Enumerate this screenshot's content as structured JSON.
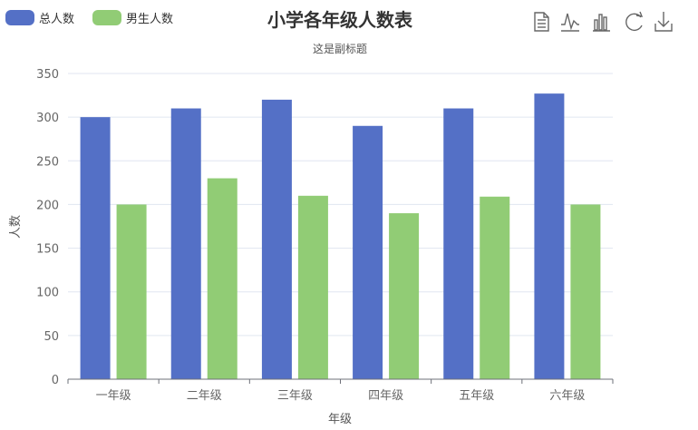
{
  "chart_data": {
    "type": "bar",
    "title": "小学各年级人数表",
    "subtitle": "这是副标题",
    "xlabel": "年级",
    "ylabel": "人数",
    "categories": [
      "一年级",
      "二年级",
      "三年级",
      "四年级",
      "五年级",
      "六年级"
    ],
    "ylim": [
      0,
      350
    ],
    "yticks": [
      0,
      50,
      100,
      150,
      200,
      250,
      300,
      350
    ],
    "grid": true,
    "legend_position": "top-left",
    "series": [
      {
        "name": "总人数",
        "color": "#5470c6",
        "values": [
          300,
          310,
          320,
          290,
          310,
          327
        ]
      },
      {
        "name": "男生人数",
        "color": "#91cc75",
        "values": [
          200,
          230,
          210,
          190,
          209,
          200
        ]
      }
    ]
  },
  "toolbox": {
    "icons": [
      "data-view-icon",
      "line-chart-icon",
      "bar-chart-icon",
      "restore-icon",
      "download-icon"
    ]
  }
}
